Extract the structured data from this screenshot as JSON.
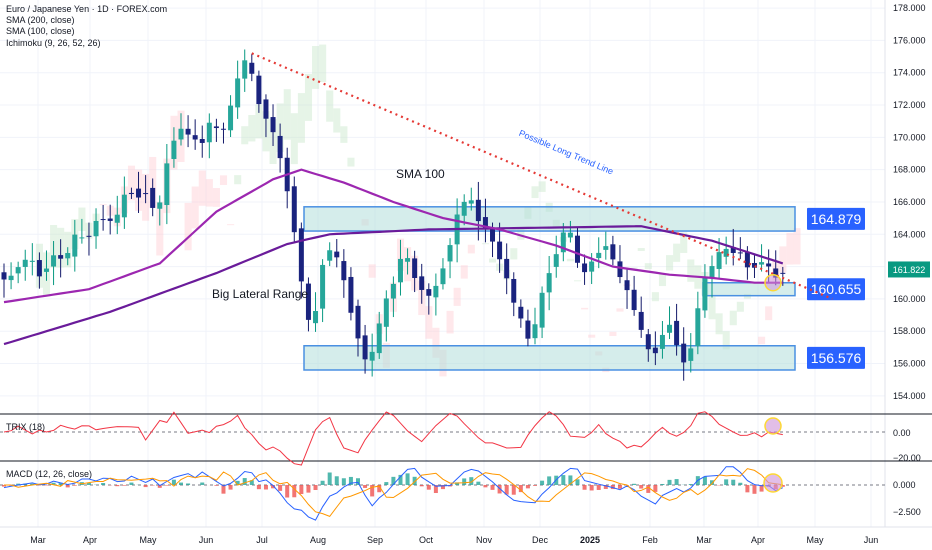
{
  "legend": {
    "symbol": "Euro / Japanese Yen · 1D · FOREX.com",
    "indicators": [
      "SMA (200, close)",
      "SMA (100, close)",
      "Ichimoku (9, 26, 52, 26)"
    ]
  },
  "panes": {
    "trix": {
      "label": "TRIX (18)",
      "ticks": [
        "0.00",
        "−20.00"
      ]
    },
    "macd": {
      "label": "MACD (12, 26, close)",
      "ticks": [
        "0.000",
        "−2.500"
      ]
    }
  },
  "chart_data": {
    "type": "candlestick",
    "ylim": [
      153,
      178.5
    ],
    "y_ticks": [
      154,
      156,
      158,
      160,
      162,
      164,
      166,
      168,
      170,
      172,
      174,
      176,
      178
    ],
    "y_tick_labels": [
      "154.000",
      "156.000",
      "158.000",
      "160.000",
      "162.000",
      "164.000",
      "166.000",
      "168.000",
      "170.000",
      "172.000",
      "174.000",
      "176.000",
      "178.000"
    ],
    "x_ticks": [
      "Mar",
      "Apr",
      "May",
      "Jun",
      "Jul",
      "Aug",
      "Sep",
      "Oct",
      "Nov",
      "Dec",
      "2025",
      "Feb",
      "Mar",
      "Apr",
      "May",
      "Jun"
    ],
    "current_price": "161.822",
    "price_path": [
      [
        0,
        160.8
      ],
      [
        2,
        161.8
      ],
      [
        4,
        162.6
      ],
      [
        6,
        161.2
      ],
      [
        7,
        162.8
      ],
      [
        9,
        162.4
      ],
      [
        11,
        164.2
      ],
      [
        12,
        163.5
      ],
      [
        14,
        165.2
      ],
      [
        16,
        164.6
      ],
      [
        18,
        166.9
      ],
      [
        20,
        166.2
      ],
      [
        21,
        167.2
      ],
      [
        22,
        164.4
      ],
      [
        24,
        169.8
      ],
      [
        26,
        170.6
      ],
      [
        28,
        169.4
      ],
      [
        30,
        171.2
      ],
      [
        31,
        169.8
      ],
      [
        33,
        172.6
      ],
      [
        34,
        174.6
      ],
      [
        35,
        175.0
      ],
      [
        36,
        172.5
      ],
      [
        38,
        171.0
      ],
      [
        40,
        167.8
      ],
      [
        41,
        165.8
      ],
      [
        42,
        162.8
      ],
      [
        43,
        159.5
      ],
      [
        44,
        157.5
      ],
      [
        45,
        161.0
      ],
      [
        46,
        163.5
      ],
      [
        48,
        162.0
      ],
      [
        50,
        158.5
      ],
      [
        51,
        157.0
      ],
      [
        52,
        155.5
      ],
      [
        53,
        157.8
      ],
      [
        55,
        160.5
      ],
      [
        57,
        163.0
      ],
      [
        59,
        160.8
      ],
      [
        61,
        160.0
      ],
      [
        63,
        162.8
      ],
      [
        65,
        165.8
      ],
      [
        66,
        166.4
      ],
      [
        67,
        165.4
      ],
      [
        69,
        164.0
      ],
      [
        71,
        162.0
      ],
      [
        72,
        160.5
      ],
      [
        73,
        159.0
      ],
      [
        75,
        157.2
      ],
      [
        76,
        159.5
      ],
      [
        78,
        162.5
      ],
      [
        80,
        164.5
      ],
      [
        81,
        163.3
      ],
      [
        82,
        161.2
      ],
      [
        84,
        162.8
      ],
      [
        86,
        163.5
      ],
      [
        87,
        161.5
      ],
      [
        89,
        160.2
      ],
      [
        90,
        158.5
      ],
      [
        92,
        156.2
      ],
      [
        93,
        157.5
      ],
      [
        95,
        158.8
      ],
      [
        96,
        155.8
      ],
      [
        97,
        156.2
      ],
      [
        98,
        158.0
      ],
      [
        99,
        160.8
      ],
      [
        101,
        162.5
      ],
      [
        103,
        163.2
      ],
      [
        105,
        162.5
      ],
      [
        106,
        161.8
      ],
      [
        108,
        162.6
      ],
      [
        109,
        161.0
      ],
      [
        110,
        161.8
      ]
    ],
    "series": [
      {
        "name": "SMA (200, close)",
        "color": "#6a1b9a",
        "path": [
          [
            0,
            157.2
          ],
          [
            15,
            159.2
          ],
          [
            30,
            161.6
          ],
          [
            40,
            163.4
          ],
          [
            46,
            164.0
          ],
          [
            60,
            164.3
          ],
          [
            75,
            164.4
          ],
          [
            90,
            164.5
          ],
          [
            100,
            163.6
          ],
          [
            110,
            162.2
          ]
        ]
      },
      {
        "name": "SMA (100, close)",
        "color": "#9c27b0",
        "path": [
          [
            0,
            159.8
          ],
          [
            12,
            160.6
          ],
          [
            22,
            162.2
          ],
          [
            30,
            165.4
          ],
          [
            38,
            167.4
          ],
          [
            42,
            168.0
          ],
          [
            48,
            167.2
          ],
          [
            55,
            166.0
          ],
          [
            62,
            165.0
          ],
          [
            70,
            164.3
          ],
          [
            78,
            163.3
          ],
          [
            86,
            162.0
          ],
          [
            94,
            161.5
          ],
          [
            100,
            161.3
          ],
          [
            106,
            161.0
          ],
          [
            110,
            161.0
          ]
        ]
      }
    ],
    "zones": [
      {
        "label": "164.879",
        "from": 164.2,
        "to": 165.7
      },
      {
        "label": "160.655",
        "from": 160.2,
        "to": 161.0
      },
      {
        "label": "156.576",
        "from": 155.6,
        "to": 157.1
      }
    ],
    "trendline": {
      "label": "Possible Long Trend Line",
      "from": [
        35,
        175.2
      ],
      "to": [
        117,
        160.0
      ]
    },
    "annotations": [
      "SMA 100",
      "Big Lateral Range"
    ]
  }
}
